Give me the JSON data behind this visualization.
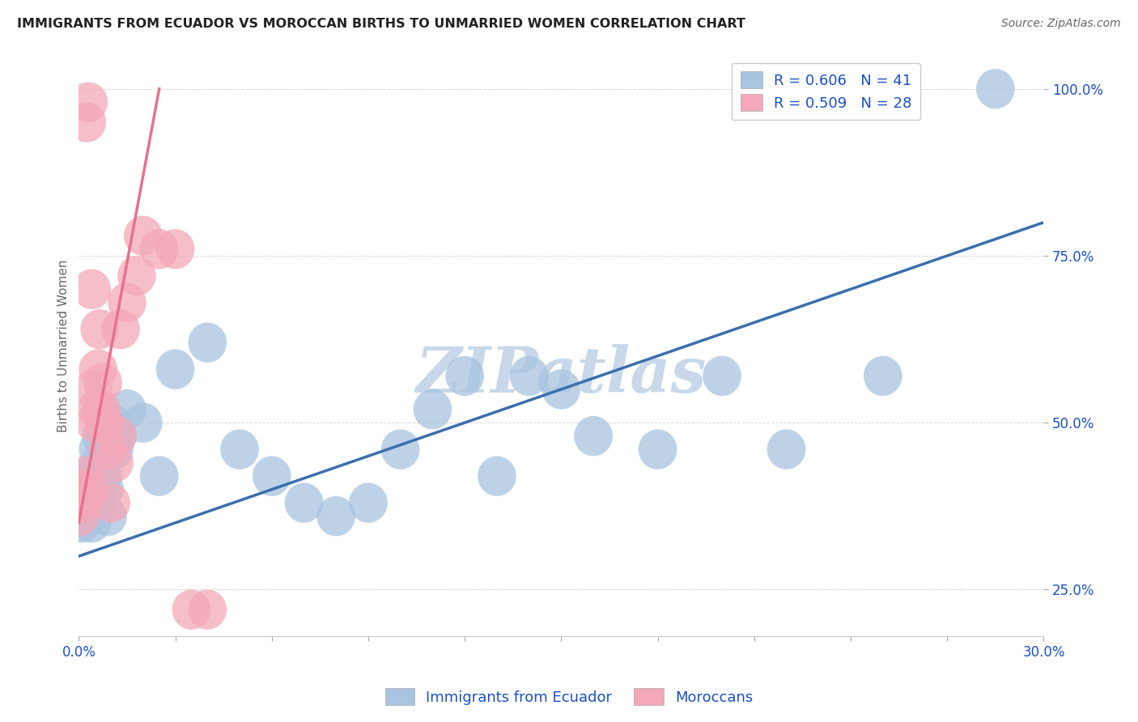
{
  "title": "IMMIGRANTS FROM ECUADOR VS MOROCCAN BIRTHS TO UNMARRIED WOMEN CORRELATION CHART",
  "source_text": "Source: ZipAtlas.com",
  "ylabel": "Births to Unmarried Women",
  "xlim": [
    0.0,
    30.0
  ],
  "ylim": [
    18.0,
    105.0
  ],
  "yticks": [
    25.0,
    50.0,
    75.0,
    100.0
  ],
  "ytick_labels": [
    "25.0%",
    "50.0%",
    "75.0%",
    "100.0%"
  ],
  "xticks": [
    0.0,
    3.0,
    6.0,
    9.0,
    12.0,
    15.0,
    18.0,
    21.0,
    24.0,
    27.0,
    30.0
  ],
  "blue_R": 0.606,
  "blue_N": 41,
  "pink_R": 0.509,
  "pink_N": 28,
  "blue_color": "#a8c4e0",
  "blue_line_color": "#3a6fad",
  "pink_color": "#f4a8b8",
  "pink_line_color": "#e87090",
  "legend_R_color": "#1a4fcc",
  "watermark": "ZIPatlas",
  "watermark_color": "#c8d8ea",
  "background_color": "#ffffff",
  "grid_color": "#cccccc",
  "blue_line_x0": 0.0,
  "blue_line_y0": 30.0,
  "blue_line_x1": 30.0,
  "blue_line_y1": 80.0,
  "pink_line_x0": 0.0,
  "pink_line_y0": 35.0,
  "pink_line_x1": 2.5,
  "pink_line_y1": 100.0,
  "blue_x": [
    0.1,
    0.15,
    0.2,
    0.25,
    0.3,
    0.35,
    0.4,
    0.45,
    0.5,
    0.55,
    0.6,
    0.65,
    0.7,
    0.75,
    0.8,
    0.9,
    1.0,
    1.1,
    1.2,
    1.5,
    2.0,
    2.5,
    3.0,
    4.0,
    5.0,
    6.0,
    7.0,
    8.0,
    9.0,
    10.0,
    11.0,
    12.0,
    13.0,
    14.0,
    15.0,
    16.0,
    18.0,
    20.0,
    22.0,
    25.0,
    28.5
  ],
  "blue_y": [
    35,
    38,
    36,
    40,
    38,
    42,
    35,
    40,
    42,
    38,
    46,
    44,
    48,
    42,
    40,
    36,
    50,
    46,
    48,
    52,
    50,
    42,
    58,
    62,
    46,
    42,
    38,
    36,
    38,
    46,
    52,
    57,
    42,
    57,
    55,
    48,
    46,
    57,
    46,
    57,
    100
  ],
  "pink_x": [
    0.05,
    0.1,
    0.15,
    0.2,
    0.25,
    0.3,
    0.35,
    0.4,
    0.45,
    0.5,
    0.55,
    0.6,
    0.65,
    0.7,
    0.75,
    0.8,
    0.9,
    1.0,
    1.1,
    1.2,
    1.3,
    1.5,
    1.8,
    2.0,
    2.5,
    3.0,
    3.5,
    4.0
  ],
  "pink_y": [
    36,
    38,
    40,
    42,
    95,
    98,
    40,
    70,
    55,
    50,
    52,
    58,
    64,
    52,
    56,
    50,
    46,
    38,
    44,
    48,
    64,
    68,
    72,
    78,
    76,
    76,
    22,
    22
  ]
}
